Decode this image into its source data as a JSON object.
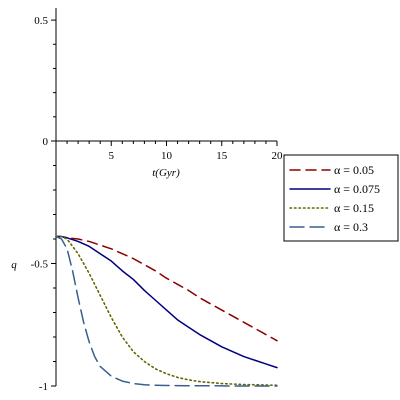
{
  "chart_data": {
    "type": "line",
    "xlabel": "t(Gyr)",
    "ylabel": "q",
    "xlim": [
      0,
      20
    ],
    "ylim": [
      -1,
      0.55
    ],
    "x_ticks": [
      5,
      10,
      15,
      20
    ],
    "y_ticks": [
      0.5,
      0,
      -0.5,
      -1
    ],
    "x_tick_labels": [
      "5",
      "10",
      "15",
      "20"
    ],
    "y_tick_labels": [
      "0.5",
      "0",
      "-0.5",
      "-1"
    ],
    "grid": false,
    "legend_position": "right",
    "series": [
      {
        "name": "α = 0.05",
        "color": "#8b0000",
        "dash": "dash",
        "x": [
          0,
          0.5,
          1,
          2,
          3,
          4,
          5,
          6,
          7,
          8,
          9,
          10,
          11,
          12,
          13,
          14,
          15,
          16,
          17,
          18,
          19,
          20
        ],
        "y": [
          -0.39,
          -0.39,
          -0.395,
          -0.4,
          -0.41,
          -0.425,
          -0.44,
          -0.46,
          -0.48,
          -0.505,
          -0.53,
          -0.56,
          -0.585,
          -0.61,
          -0.64,
          -0.665,
          -0.69,
          -0.715,
          -0.74,
          -0.765,
          -0.79,
          -0.815
        ]
      },
      {
        "name": "α = 0.075",
        "color": "#00007f",
        "dash": "solid",
        "x": [
          0,
          0.5,
          1,
          2,
          3,
          4,
          5,
          6,
          7,
          8,
          9,
          10,
          11,
          12,
          13,
          14,
          15,
          16,
          17,
          18,
          19,
          20
        ],
        "y": [
          -0.39,
          -0.39,
          -0.395,
          -0.41,
          -0.43,
          -0.46,
          -0.49,
          -0.53,
          -0.565,
          -0.61,
          -0.65,
          -0.69,
          -0.73,
          -0.76,
          -0.79,
          -0.815,
          -0.84,
          -0.86,
          -0.88,
          -0.895,
          -0.91,
          -0.925
        ]
      },
      {
        "name": "α = 0.15",
        "color": "#666600",
        "dash": "dot",
        "x": [
          0,
          0.5,
          1,
          2,
          3,
          4,
          5,
          6,
          7,
          8,
          9,
          10,
          11,
          12,
          13,
          14,
          15,
          16,
          17,
          18,
          19,
          20
        ],
        "y": [
          -0.39,
          -0.39,
          -0.4,
          -0.46,
          -0.54,
          -0.63,
          -0.72,
          -0.8,
          -0.86,
          -0.9,
          -0.93,
          -0.95,
          -0.965,
          -0.975,
          -0.982,
          -0.986,
          -0.99,
          -0.992,
          -0.994,
          -0.995,
          -0.996,
          -0.997
        ]
      },
      {
        "name": "α = 0.3",
        "color": "#3a5f8f",
        "dash": "longdash",
        "x": [
          0,
          0.5,
          1,
          1.5,
          2,
          2.5,
          3,
          3.5,
          4,
          5,
          6,
          7,
          8,
          9,
          10,
          12,
          14,
          16,
          18,
          20
        ],
        "y": [
          -0.39,
          -0.4,
          -0.44,
          -0.53,
          -0.64,
          -0.74,
          -0.82,
          -0.88,
          -0.92,
          -0.96,
          -0.98,
          -0.99,
          -0.995,
          -0.997,
          -0.998,
          -0.999,
          -0.999,
          -1.0,
          -1.0,
          -1.0
        ]
      }
    ]
  }
}
